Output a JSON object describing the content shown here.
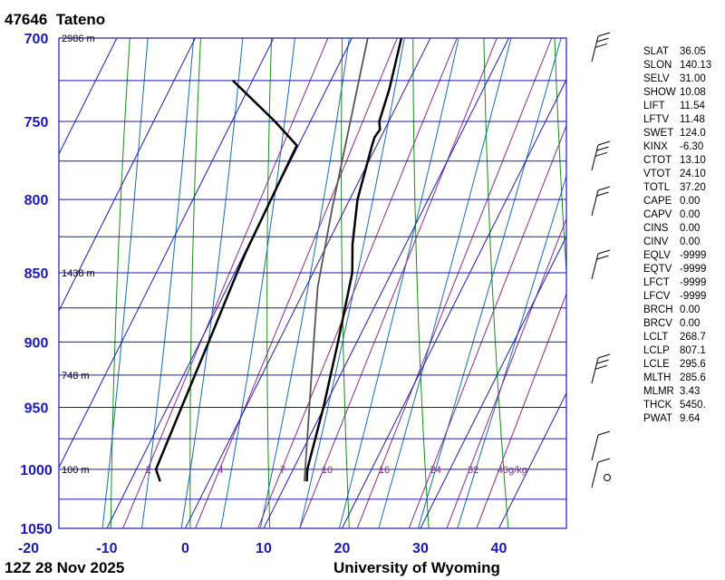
{
  "header": {
    "station": "47646  Tateno",
    "time": "12Z 28 Nov 2025",
    "source": "University of Wyoming"
  },
  "chart_data": {
    "type": "line",
    "xlim": [
      -20,
      45
    ],
    "plim": [
      700,
      1050
    ],
    "pressure_ticks": [
      "700",
      "750",
      "800",
      "850",
      "900",
      "950",
      "1000",
      "1050"
    ],
    "pressure_values": [
      700,
      750,
      800,
      850,
      900,
      950,
      1000,
      1050
    ],
    "temp_ticks": [
      "-20",
      "-10",
      "0",
      "10",
      "20",
      "30",
      "40"
    ],
    "temp_values": [
      -20,
      -10,
      0,
      10,
      20,
      30,
      40
    ],
    "height_labels": [
      {
        "p": 700,
        "text": "2986 m"
      },
      {
        "p": 850,
        "text": "1438 m"
      },
      {
        "p": 925,
        "text": "748 m"
      },
      {
        "p": 1000,
        "text": "100 m"
      }
    ],
    "mixing_ratio_labels": [
      {
        "w": 2,
        "text": "2"
      },
      {
        "w": 4,
        "text": "4"
      },
      {
        "w": 7,
        "text": "7"
      },
      {
        "w": 10,
        "text": "10"
      },
      {
        "w": 16,
        "text": "16"
      },
      {
        "w": 24,
        "text": "24"
      },
      {
        "w": 32,
        "text": "32"
      },
      {
        "w": 40,
        "text": "40g/kg"
      }
    ],
    "series": [
      {
        "color": "#000000",
        "points": [
          [
            12.5,
            1010
          ],
          [
            11.8,
            1000
          ],
          [
            9.9,
            950
          ],
          [
            7.6,
            900
          ],
          [
            5.0,
            850
          ],
          [
            3.2,
            830
          ],
          [
            1.0,
            800
          ],
          [
            -0.6,
            765
          ],
          [
            -0.8,
            760
          ],
          [
            -0.6,
            755
          ],
          [
            -1.2,
            750
          ],
          [
            -2.0,
            730
          ],
          [
            -3.7,
            700
          ]
        ]
      },
      {
        "color": "#000000",
        "points": [
          [
            -6.2,
            1010
          ],
          [
            -7.5,
            1000
          ],
          [
            -8.2,
            950
          ],
          [
            -8.9,
            900
          ],
          [
            -9.7,
            850
          ],
          [
            -9.9,
            835
          ],
          [
            -10.2,
            765
          ],
          [
            -14.5,
            750
          ],
          [
            -22.5,
            725
          ]
        ]
      },
      {
        "color": "#555555",
        "points": [
          [
            12.2,
            1010
          ],
          [
            4.5,
            900
          ],
          [
            1.5,
            860
          ],
          [
            -1.6,
            807
          ],
          [
            -8.0,
            700
          ]
        ]
      }
    ]
  },
  "stats": [
    {
      "key": "SLAT",
      "value": "36.05"
    },
    {
      "key": "SLON",
      "value": "140.13"
    },
    {
      "key": "SELV",
      "value": "31.00"
    },
    {
      "key": "SHOW",
      "value": "10.08"
    },
    {
      "key": "LIFT",
      "value": "11.54"
    },
    {
      "key": "LFTV",
      "value": "11.48"
    },
    {
      "key": "SWET",
      "value": "124.0"
    },
    {
      "key": "KINX",
      "value": "-6.30"
    },
    {
      "key": "CTOT",
      "value": "13.10"
    },
    {
      "key": "VTOT",
      "value": "24.10"
    },
    {
      "key": "TOTL",
      "value": "37.20"
    },
    {
      "key": "CAPE",
      "value": "0.00"
    },
    {
      "key": "CAPV",
      "value": "0.00"
    },
    {
      "key": "CINS",
      "value": "0.00"
    },
    {
      "key": "CINV",
      "value": "0.00"
    },
    {
      "key": "EQLV",
      "value": "-9999"
    },
    {
      "key": "EQTV",
      "value": "-9999"
    },
    {
      "key": "LFCT",
      "value": "-9999"
    },
    {
      "key": "LFCV",
      "value": "-9999"
    },
    {
      "key": "BRCH",
      "value": "0.00"
    },
    {
      "key": "BRCV",
      "value": "0.00"
    },
    {
      "key": "LCLT",
      "value": "268.7"
    },
    {
      "key": "LCLP",
      "value": "807.1"
    },
    {
      "key": "LCLE",
      "value": "295.6"
    },
    {
      "key": "MLTH",
      "value": "285.6"
    },
    {
      "key": "MLMR",
      "value": "3.43"
    },
    {
      "key": "THCK",
      "value": "5450."
    },
    {
      "key": "PWAT",
      "value": "9.64"
    }
  ]
}
